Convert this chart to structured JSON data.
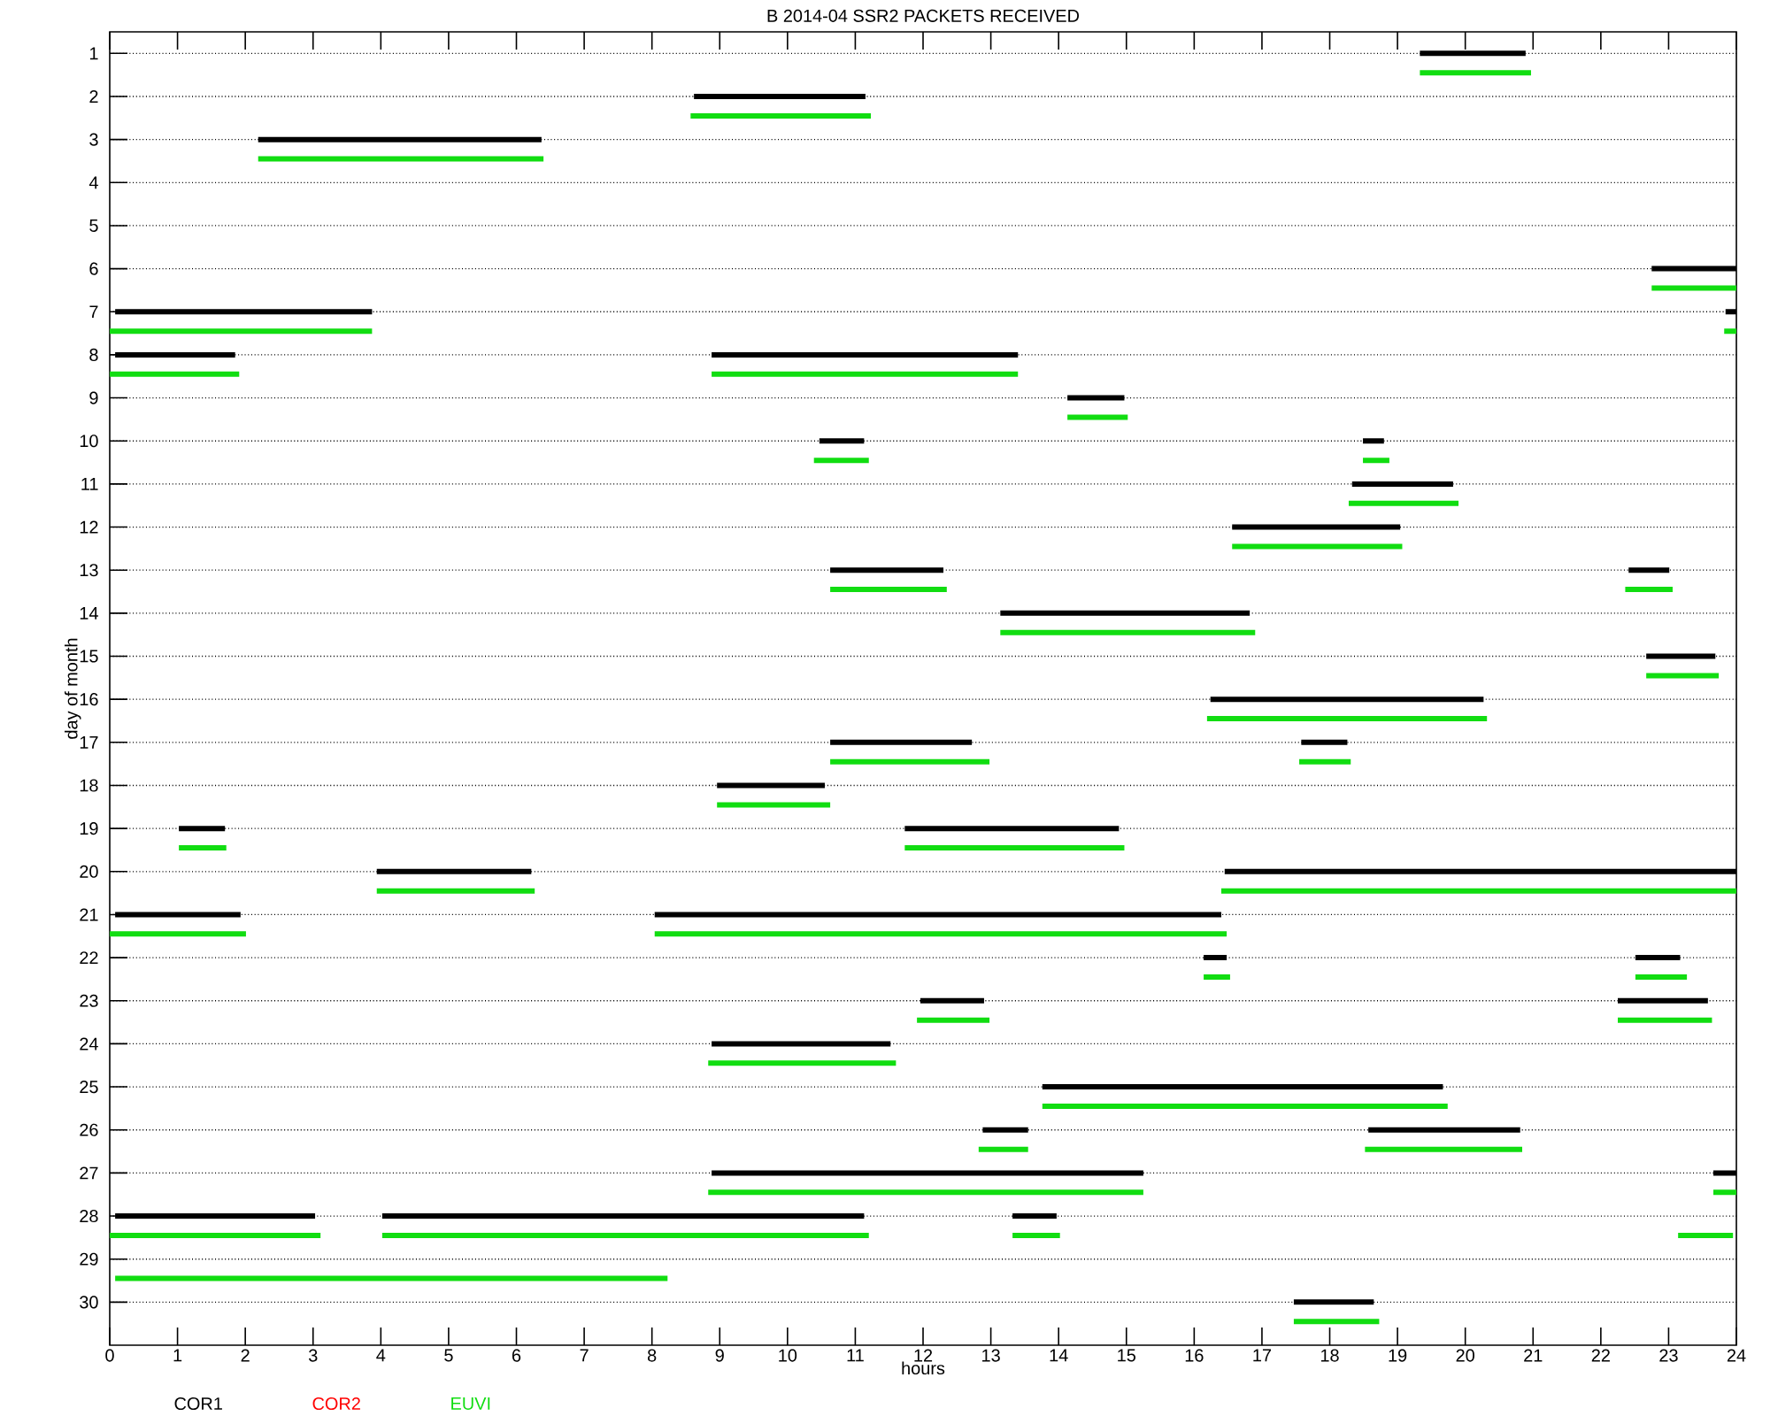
{
  "chart_data": {
    "type": "line",
    "title": "B  2014-04 SSR2 PACKETS RECEIVED",
    "xlabel": "hours",
    "ylabel": "day of month",
    "xlim": [
      0,
      24
    ],
    "ylim": [
      31,
      0.5
    ],
    "xticks": [
      0,
      1,
      2,
      3,
      4,
      5,
      6,
      7,
      8,
      9,
      10,
      11,
      12,
      13,
      14,
      15,
      16,
      17,
      18,
      19,
      20,
      21,
      22,
      23,
      24
    ],
    "yticks": [
      1,
      2,
      3,
      4,
      5,
      6,
      7,
      8,
      9,
      10,
      11,
      12,
      13,
      14,
      15,
      16,
      17,
      18,
      19,
      20,
      21,
      22,
      23,
      24,
      25,
      26,
      27,
      28,
      29,
      30
    ],
    "grid": "y",
    "legend": "bottom",
    "series": [
      {
        "name": "COR1",
        "color": "#000000",
        "x": [
          19.33,
          20.89,
          null,
          8.62,
          11.15,
          null,
          2.19,
          6.37,
          null,
          22.75,
          24,
          null,
          0.08,
          3.87,
          null,
          23.84,
          24,
          null,
          0.08,
          1.85,
          null,
          8.88,
          13.4,
          null,
          14.13,
          14.97,
          null,
          10.47,
          11.13,
          null,
          18.49,
          18.8,
          null,
          18.33,
          19.82,
          null,
          16.56,
          19.04,
          null,
          10.63,
          12.3,
          null,
          22.41,
          23.01,
          null,
          13.14,
          16.82,
          null,
          22.67,
          23.69,
          null,
          16.24,
          20.27,
          null,
          10.63,
          12.72,
          null,
          17.58,
          18.26,
          null,
          8.96,
          10.55,
          null,
          1.02,
          1.7,
          null,
          11.73,
          14.89,
          null,
          3.94,
          6.22,
          null,
          16.45,
          24,
          null,
          0.08,
          1.93,
          null,
          8.04,
          16.4,
          null,
          16.14,
          16.48,
          null,
          22.51,
          23.17,
          null,
          11.96,
          12.9,
          null,
          22.25,
          23.58,
          null,
          8.88,
          11.52,
          null,
          13.76,
          19.67,
          null,
          12.88,
          13.55,
          null,
          18.57,
          20.81,
          null,
          8.88,
          15.25,
          null,
          23.66,
          24,
          null,
          0.08,
          3.03,
          null,
          4.02,
          11.13,
          null,
          13.32,
          13.97,
          null,
          17.47,
          18.65
        ],
        "values": [
          1,
          1,
          null,
          2,
          2,
          null,
          3,
          3,
          null,
          6,
          6,
          null,
          7,
          7,
          null,
          7,
          7,
          null,
          8,
          8,
          null,
          8,
          8,
          null,
          9,
          9,
          null,
          10,
          10,
          null,
          10,
          10,
          null,
          11,
          11,
          null,
          12,
          12,
          null,
          13,
          13,
          null,
          13,
          13,
          null,
          14,
          14,
          null,
          15,
          15,
          null,
          16,
          16,
          null,
          17,
          17,
          null,
          17,
          17,
          null,
          18,
          18,
          null,
          19,
          19,
          null,
          19,
          19,
          null,
          20,
          20,
          null,
          20,
          20,
          null,
          21,
          21,
          null,
          21,
          21,
          null,
          22,
          22,
          null,
          22,
          22,
          null,
          23,
          23,
          null,
          23,
          23,
          null,
          24,
          24,
          null,
          25,
          25,
          null,
          26,
          26,
          null,
          26,
          26,
          null,
          27,
          27,
          null,
          27,
          27,
          null,
          28,
          28,
          null,
          28,
          28,
          null,
          28,
          28,
          null,
          30,
          30
        ]
      },
      {
        "name": "COR2",
        "color": "#ff0000"
      },
      {
        "name": "EUVI",
        "color": "#11dd11",
        "x": [
          19.33,
          20.97,
          null,
          8.57,
          11.23,
          null,
          2.19,
          6.4,
          null,
          22.75,
          24,
          null,
          0,
          3.87,
          null,
          23.82,
          24,
          null,
          0,
          1.91,
          null,
          8.88,
          13.4,
          null,
          14.13,
          15.02,
          null,
          10.39,
          11.2,
          null,
          18.49,
          18.88,
          null,
          18.28,
          19.9,
          null,
          16.56,
          19.07,
          null,
          10.63,
          12.35,
          null,
          22.36,
          23.06,
          null,
          13.14,
          16.9,
          null,
          22.67,
          23.74,
          null,
          16.19,
          20.32,
          null,
          10.63,
          12.98,
          null,
          17.55,
          18.31,
          null,
          8.96,
          10.63,
          null,
          1.02,
          1.72,
          null,
          11.73,
          14.97,
          null,
          3.94,
          6.27,
          null,
          16.4,
          24,
          null,
          0,
          2.01,
          null,
          8.04,
          16.48,
          null,
          16.14,
          16.53,
          null,
          22.51,
          23.27,
          null,
          11.91,
          12.98,
          null,
          22.25,
          23.64,
          null,
          8.83,
          11.6,
          null,
          13.76,
          19.74,
          null,
          12.82,
          13.55,
          null,
          18.52,
          20.84,
          null,
          8.83,
          15.25,
          null,
          23.66,
          24,
          null,
          0,
          3.11,
          null,
          4.02,
          11.2,
          null,
          13.32,
          14.02,
          null,
          23.14,
          23.95,
          null,
          0.08,
          8.23,
          null,
          17.47,
          18.73
        ],
        "values": [
          1.45,
          1.45,
          null,
          2.45,
          2.45,
          null,
          3.45,
          3.45,
          null,
          6.45,
          6.45,
          null,
          7.45,
          7.45,
          null,
          7.45,
          7.45,
          null,
          8.45,
          8.45,
          null,
          8.45,
          8.45,
          null,
          9.45,
          9.45,
          null,
          10.45,
          10.45,
          null,
          10.45,
          10.45,
          null,
          11.45,
          11.45,
          null,
          12.45,
          12.45,
          null,
          13.45,
          13.45,
          null,
          13.45,
          13.45,
          null,
          14.45,
          14.45,
          null,
          15.45,
          15.45,
          null,
          16.45,
          16.45,
          null,
          17.45,
          17.45,
          null,
          17.45,
          17.45,
          null,
          18.45,
          18.45,
          null,
          19.45,
          19.45,
          null,
          19.45,
          19.45,
          null,
          20.45,
          20.45,
          null,
          20.45,
          20.45,
          null,
          21.45,
          21.45,
          null,
          21.45,
          21.45,
          null,
          22.45,
          22.45,
          null,
          22.45,
          22.45,
          null,
          23.45,
          23.45,
          null,
          23.45,
          23.45,
          null,
          24.45,
          24.45,
          null,
          25.45,
          25.45,
          null,
          26.45,
          26.45,
          null,
          26.45,
          26.45,
          null,
          27.45,
          27.45,
          null,
          27.45,
          27.45,
          null,
          28.45,
          28.45,
          null,
          28.45,
          28.45,
          null,
          28.45,
          28.45,
          null,
          28.45,
          28.45,
          null,
          29.45,
          29.45,
          null,
          30.45,
          30.45
        ]
      }
    ]
  }
}
